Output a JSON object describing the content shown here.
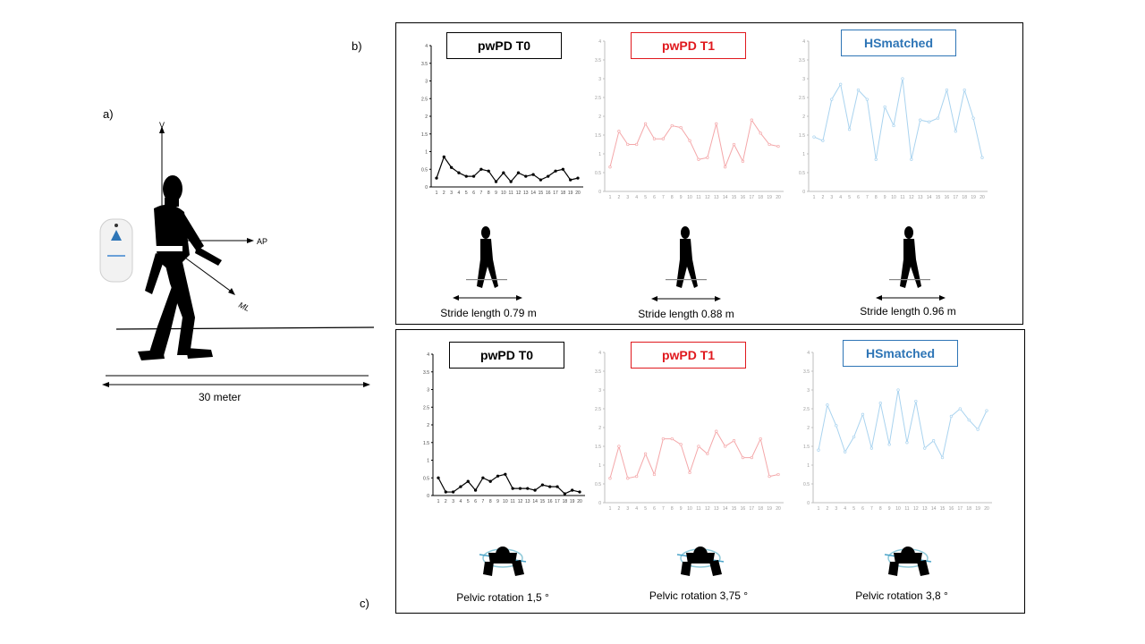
{
  "labels": {
    "a": "a)",
    "b": "b)",
    "c": "c)"
  },
  "setup": {
    "axis_v": "V",
    "axis_ap": "AP",
    "axis_ml": "ML",
    "distance": "30 meter"
  },
  "groups": [
    {
      "title": "pwPD T0",
      "color": "#000000"
    },
    {
      "title": "pwPD T1",
      "color": "#e0191e"
    },
    {
      "title": "HSmatched",
      "color": "#2e75b6"
    }
  ],
  "captions_b": [
    "Stride length 0.79 m",
    "Stride length 0.88 m",
    "Stride length 0.96 m"
  ],
  "captions_c": [
    "Pelvic rotation 1,5 °",
    "Pelvic rotation 3,75 °",
    "Pelvic rotation 3,8 °"
  ],
  "chart_data": [
    {
      "type": "line",
      "title": "pwPD T0",
      "x": [
        1,
        2,
        3,
        4,
        5,
        6,
        7,
        8,
        9,
        10,
        11,
        12,
        13,
        14,
        15,
        16,
        17,
        18,
        19,
        20
      ],
      "yticks": [
        "0",
        "0.5",
        "1",
        "1.5",
        "2",
        "2.5",
        "3",
        "3.5",
        "4"
      ],
      "ylim": [
        0,
        4
      ],
      "series": [
        {
          "values": [
            0.25,
            0.85,
            0.55,
            0.4,
            0.3,
            0.3,
            0.5,
            0.45,
            0.15,
            0.4,
            0.15,
            0.4,
            0.3,
            0.35,
            0.2,
            0.3,
            0.45,
            0.5,
            0.2,
            0.25
          ],
          "color": "#000000"
        }
      ]
    },
    {
      "type": "line",
      "title": "pwPD T1",
      "x": [
        1,
        2,
        3,
        4,
        5,
        6,
        7,
        8,
        9,
        10,
        11,
        12,
        13,
        14,
        15,
        16,
        17,
        18,
        19,
        20
      ],
      "yticks": [
        "0",
        "0.5",
        "1",
        "1.5",
        "2",
        "2.5",
        "3",
        "3.5",
        "4"
      ],
      "ylim": [
        0,
        4
      ],
      "series": [
        {
          "values": [
            0.65,
            1.6,
            1.25,
            1.25,
            1.8,
            1.4,
            1.4,
            1.75,
            1.7,
            1.35,
            0.85,
            0.9,
            1.8,
            0.65,
            1.25,
            0.8,
            1.9,
            1.55,
            1.25,
            1.2
          ],
          "color": "#f4a7a9"
        }
      ]
    },
    {
      "type": "line",
      "title": "HSmatched",
      "x": [
        1,
        2,
        3,
        4,
        5,
        6,
        7,
        8,
        9,
        10,
        11,
        12,
        13,
        14,
        15,
        16,
        17,
        18,
        19,
        20
      ],
      "yticks": [
        "0",
        "0.5",
        "1",
        "1.5",
        "2",
        "2.5",
        "3",
        "3.5",
        "4"
      ],
      "ylim": [
        0,
        4
      ],
      "series": [
        {
          "values": [
            1.45,
            1.35,
            2.45,
            2.85,
            1.65,
            2.7,
            2.45,
            0.85,
            2.25,
            1.75,
            3.0,
            0.85,
            1.9,
            1.85,
            1.95,
            2.7,
            1.6,
            2.7,
            1.95,
            0.9
          ],
          "color": "#a9d3ef"
        }
      ]
    },
    {
      "type": "line",
      "title": "pwPD T0",
      "x": [
        1,
        2,
        3,
        4,
        5,
        6,
        7,
        8,
        9,
        10,
        11,
        12,
        13,
        14,
        15,
        16,
        17,
        18,
        19,
        20
      ],
      "yticks": [
        "0",
        "0.5",
        "1",
        "1.5",
        "2",
        "2.5",
        "3",
        "3.5",
        "4"
      ],
      "ylim": [
        0,
        4
      ],
      "series": [
        {
          "values": [
            0.5,
            0.1,
            0.1,
            0.25,
            0.4,
            0.15,
            0.5,
            0.4,
            0.55,
            0.6,
            0.2,
            0.2,
            0.2,
            0.15,
            0.3,
            0.25,
            0.25,
            0.05,
            0.15,
            0.1
          ],
          "color": "#000000"
        }
      ]
    },
    {
      "type": "line",
      "title": "pwPD T1",
      "x": [
        1,
        2,
        3,
        4,
        5,
        6,
        7,
        8,
        9,
        10,
        11,
        12,
        13,
        14,
        15,
        16,
        17,
        18,
        19,
        20
      ],
      "yticks": [
        "0",
        "0.5",
        "1",
        "1.5",
        "2",
        "2.5",
        "3",
        "3.5",
        "4"
      ],
      "ylim": [
        0,
        4
      ],
      "series": [
        {
          "values": [
            0.65,
            1.5,
            0.65,
            0.7,
            1.3,
            0.75,
            1.7,
            1.7,
            1.55,
            0.8,
            1.5,
            1.3,
            1.9,
            1.5,
            1.65,
            1.2,
            1.2,
            1.7,
            0.7,
            0.75
          ],
          "color": "#f4a7a9"
        }
      ]
    },
    {
      "type": "line",
      "title": "HSmatched",
      "x": [
        1,
        2,
        3,
        4,
        5,
        6,
        7,
        8,
        9,
        10,
        11,
        12,
        13,
        14,
        15,
        16,
        17,
        18,
        19,
        20
      ],
      "yticks": [
        "0",
        "0.5",
        "1",
        "1.5",
        "2",
        "2.5",
        "3",
        "3.5",
        "4"
      ],
      "ylim": [
        0,
        4
      ],
      "series": [
        {
          "values": [
            1.4,
            2.6,
            2.05,
            1.35,
            1.75,
            2.35,
            1.45,
            2.65,
            1.55,
            3.0,
            1.6,
            2.7,
            1.45,
            1.65,
            1.2,
            2.3,
            2.5,
            2.2,
            1.95,
            2.45
          ],
          "color": "#a9d3ef"
        }
      ]
    }
  ]
}
